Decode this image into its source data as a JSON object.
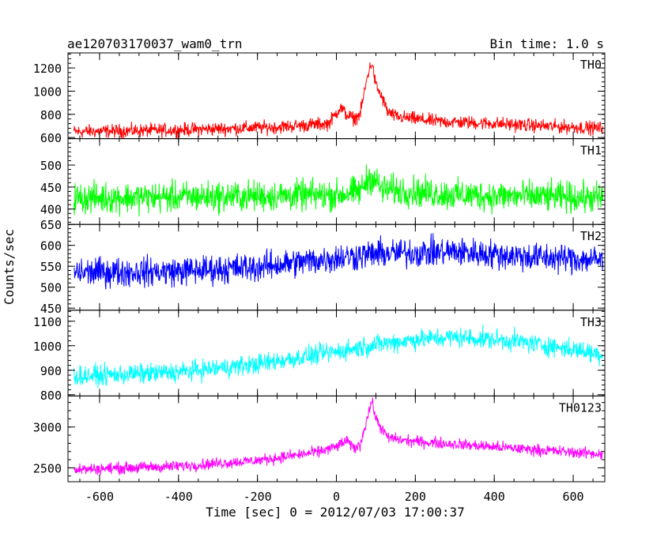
{
  "header": {
    "title": "ae120703170037_wam0_trn",
    "bin_time": "Bin time: 1.0 s"
  },
  "chart_data": {
    "type": "line",
    "xlabel": "Time [sec] 0 = 2012/07/03 17:00:37",
    "ylabel": "Counts/sec",
    "xlim": [
      -680,
      680
    ],
    "x_ticks": [
      -600,
      -400,
      -200,
      0,
      200,
      400,
      600
    ],
    "x_range": [
      -665,
      675
    ],
    "grid": false,
    "panels": [
      {
        "name": "TH0",
        "color": "#ff0000",
        "ylim": [
          590,
          1330
        ],
        "y_ticks": [
          600,
          800,
          1000,
          1200
        ],
        "points": [
          [
            -665,
            650
          ],
          [
            -400,
            665
          ],
          [
            -150,
            690
          ],
          [
            -20,
            720
          ],
          [
            10,
            860
          ],
          [
            25,
            800
          ],
          [
            45,
            760
          ],
          [
            60,
            800
          ],
          [
            80,
            1150
          ],
          [
            90,
            1250
          ],
          [
            100,
            1050
          ],
          [
            115,
            950
          ],
          [
            130,
            820
          ],
          [
            150,
            780
          ],
          [
            250,
            740
          ],
          [
            400,
            720
          ],
          [
            550,
            695
          ],
          [
            675,
            680
          ]
        ],
        "noise": 50
      },
      {
        "name": "TH1",
        "color": "#00ff00",
        "ylim": [
          365,
          560
        ],
        "y_ticks": [
          400,
          450,
          500
        ],
        "points": [
          [
            -665,
            425
          ],
          [
            -300,
            428
          ],
          [
            0,
            432
          ],
          [
            60,
            440
          ],
          [
            80,
            470
          ],
          [
            95,
            470
          ],
          [
            115,
            445
          ],
          [
            300,
            432
          ],
          [
            675,
            425
          ]
        ],
        "noise": 30
      },
      {
        "name": "TH2",
        "color": "#0000ff",
        "ylim": [
          445,
          650
        ],
        "y_ticks": [
          450,
          500,
          550,
          600,
          650
        ],
        "points": [
          [
            -665,
            535
          ],
          [
            -400,
            538
          ],
          [
            -200,
            548
          ],
          [
            0,
            570
          ],
          [
            100,
            580
          ],
          [
            300,
            585
          ],
          [
            500,
            572
          ],
          [
            675,
            565
          ]
        ],
        "noise": 30
      },
      {
        "name": "TH3",
        "color": "#00ffff",
        "ylim": [
          795,
          1145
        ],
        "y_ticks": [
          800,
          900,
          1000,
          1100
        ],
        "points": [
          [
            -665,
            875
          ],
          [
            -400,
            892
          ],
          [
            -200,
            925
          ],
          [
            0,
            975
          ],
          [
            100,
            1005
          ],
          [
            200,
            1025
          ],
          [
            300,
            1035
          ],
          [
            450,
            1020
          ],
          [
            600,
            985
          ],
          [
            675,
            965
          ]
        ],
        "noise": 35
      },
      {
        "name": "TH0123",
        "color": "#ff00ff",
        "ylim": [
          2330,
          3380
        ],
        "y_ticks": [
          2500,
          3000
        ],
        "points": [
          [
            -665,
            2480
          ],
          [
            -400,
            2520
          ],
          [
            -200,
            2590
          ],
          [
            -50,
            2690
          ],
          [
            0,
            2760
          ],
          [
            25,
            2830
          ],
          [
            45,
            2740
          ],
          [
            60,
            2780
          ],
          [
            80,
            3150
          ],
          [
            90,
            3320
          ],
          [
            100,
            3100
          ],
          [
            115,
            2980
          ],
          [
            130,
            2870
          ],
          [
            180,
            2830
          ],
          [
            300,
            2790
          ],
          [
            450,
            2740
          ],
          [
            600,
            2690
          ],
          [
            675,
            2670
          ]
        ],
        "noise": 60
      }
    ]
  }
}
